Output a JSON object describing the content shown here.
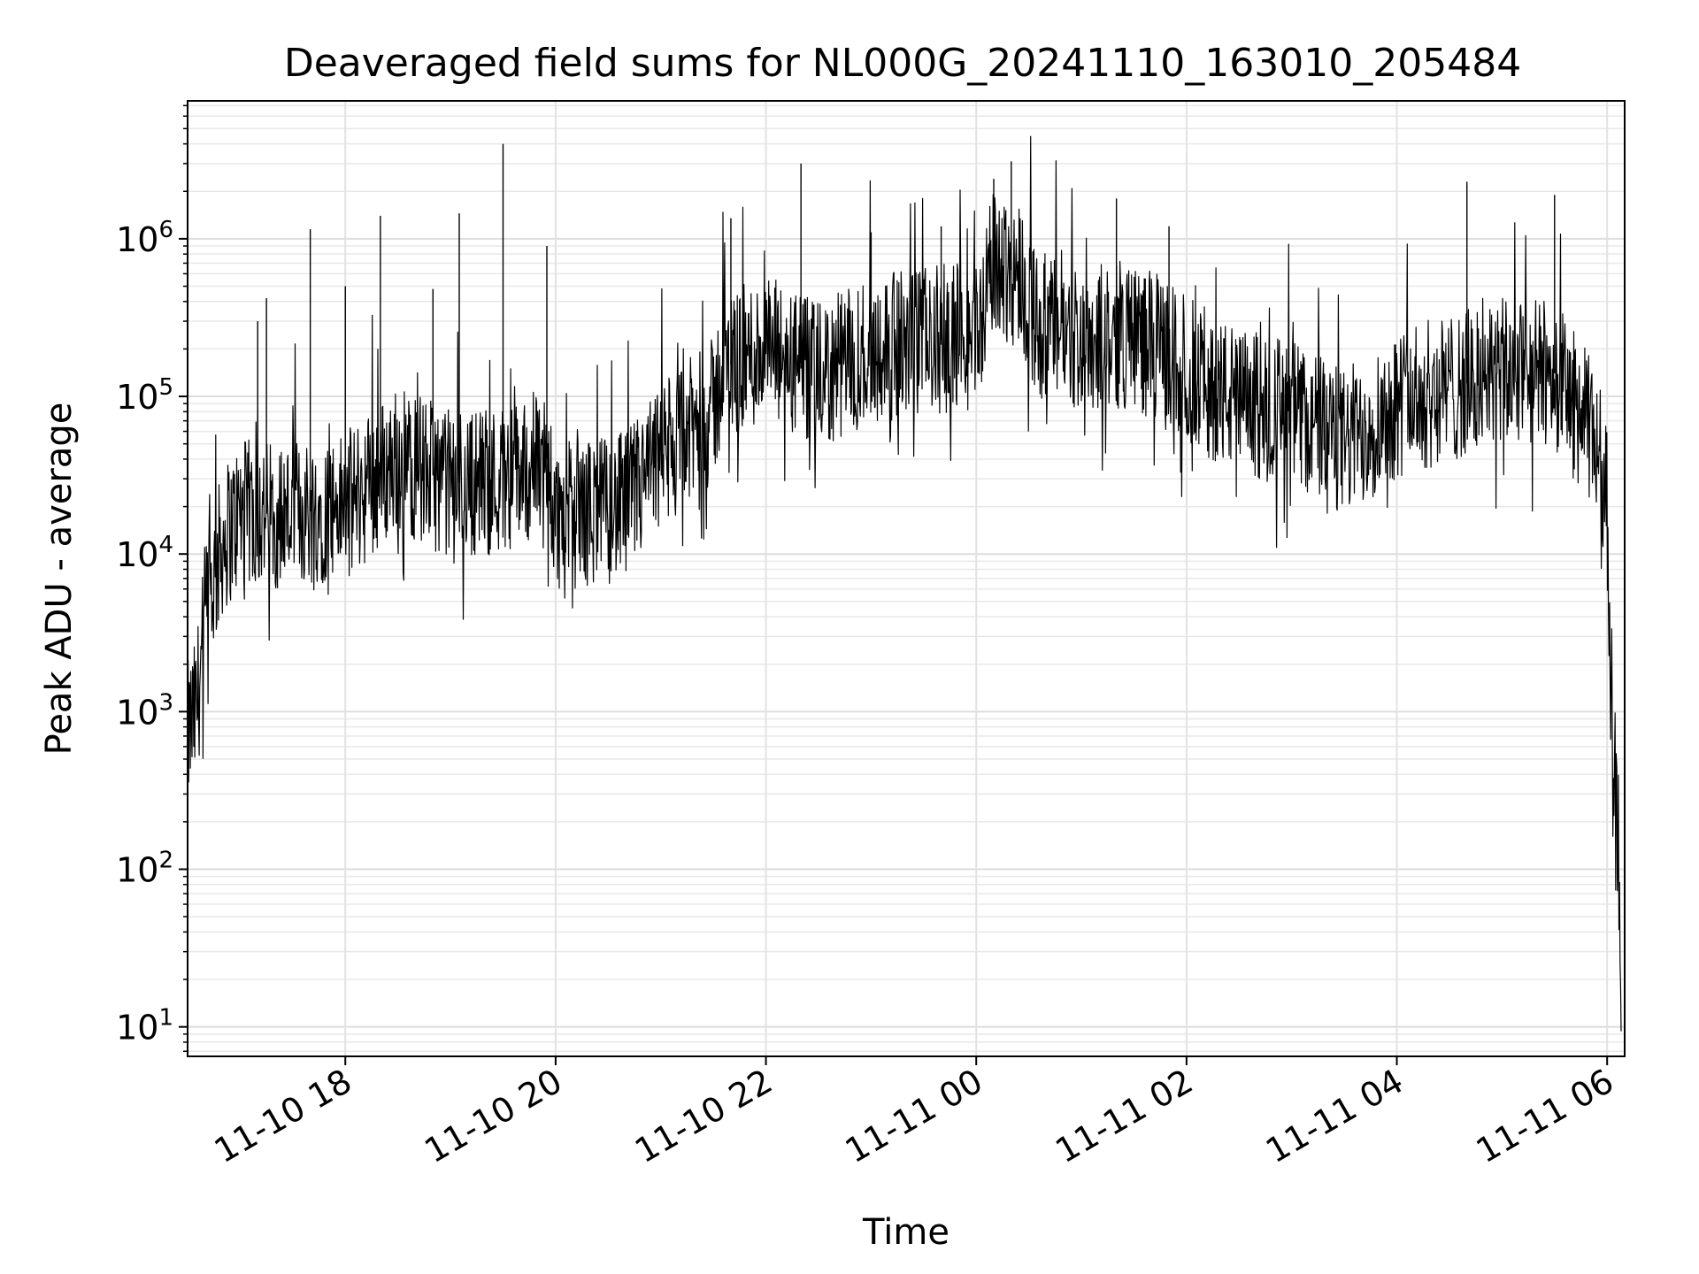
{
  "chart_data": {
    "type": "line",
    "title": "Deaveraged field sums for NL000G_20241110_163010_205484",
    "xlabel": "Time",
    "ylabel": "Peak ADU - average",
    "yscale": "log",
    "ylim": [
      6.5,
      7500000
    ],
    "xlim": [
      "2024-11-10 16:30",
      "2024-11-11 06:10"
    ],
    "grid": true,
    "x_ticks": [
      {
        "t": "2024-11-10 18:00",
        "label": "11-10 18"
      },
      {
        "t": "2024-11-10 20:00",
        "label": "11-10 20"
      },
      {
        "t": "2024-11-10 22:00",
        "label": "11-10 22"
      },
      {
        "t": "2024-11-11 00:00",
        "label": "11-11 00"
      },
      {
        "t": "2024-11-11 02:00",
        "label": "11-11 02"
      },
      {
        "t": "2024-11-11 04:00",
        "label": "11-11 04"
      },
      {
        "t": "2024-11-11 06:00",
        "label": "11-11 06"
      }
    ],
    "y_ticks": [
      {
        "value": 10,
        "base": "10",
        "exp": "1"
      },
      {
        "value": 100,
        "base": "10",
        "exp": "2"
      },
      {
        "value": 1000,
        "base": "10",
        "exp": "3"
      },
      {
        "value": 10000,
        "base": "10",
        "exp": "4"
      },
      {
        "value": 100000,
        "base": "10",
        "exp": "5"
      },
      {
        "value": 1000000,
        "base": "10",
        "exp": "6"
      }
    ],
    "series": [
      {
        "color": "#000000",
        "envelope": [
          {
            "t": "2024-11-10 16:30",
            "base": 700
          },
          {
            "t": "2024-11-10 16:35",
            "base": 1000
          },
          {
            "t": "2024-11-10 16:40",
            "base": 4000
          },
          {
            "t": "2024-11-10 16:50",
            "base": 12000
          },
          {
            "t": "2024-11-10 17:00",
            "base": 18000
          },
          {
            "t": "2024-11-10 17:30",
            "base": 18000
          },
          {
            "t": "2024-11-10 18:00",
            "base": 20000
          },
          {
            "t": "2024-11-10 18:30",
            "base": 40000
          },
          {
            "t": "2024-11-10 19:00",
            "base": 28000
          },
          {
            "t": "2024-11-10 19:30",
            "base": 30000
          },
          {
            "t": "2024-11-10 19:55",
            "base": 40000
          },
          {
            "t": "2024-11-10 20:00",
            "base": 17000
          },
          {
            "t": "2024-11-10 20:40",
            "base": 20000
          },
          {
            "t": "2024-11-10 21:00",
            "base": 40000
          },
          {
            "t": "2024-11-10 21:30",
            "base": 80000
          },
          {
            "t": "2024-11-10 21:35",
            "base": 150000
          },
          {
            "t": "2024-11-10 22:00",
            "base": 200000
          },
          {
            "t": "2024-11-10 22:30",
            "base": 130000
          },
          {
            "t": "2024-11-10 23:00",
            "base": 200000
          },
          {
            "t": "2024-11-10 23:30",
            "base": 220000
          },
          {
            "t": "2024-11-11 00:00",
            "base": 250000
          },
          {
            "t": "2024-11-11 00:10",
            "base": 700000
          },
          {
            "t": "2024-11-11 00:25",
            "base": 600000
          },
          {
            "t": "2024-11-11 00:35",
            "base": 280000
          },
          {
            "t": "2024-11-11 01:00",
            "base": 230000
          },
          {
            "t": "2024-11-11 01:30",
            "base": 250000
          },
          {
            "t": "2024-11-11 02:00",
            "base": 150000
          },
          {
            "t": "2024-11-11 02:30",
            "base": 90000
          },
          {
            "t": "2024-11-11 03:00",
            "base": 80000
          },
          {
            "t": "2024-11-11 03:30",
            "base": 50000
          },
          {
            "t": "2024-11-11 04:00",
            "base": 90000
          },
          {
            "t": "2024-11-11 05:00",
            "base": 140000
          },
          {
            "t": "2024-11-11 05:30",
            "base": 140000
          },
          {
            "t": "2024-11-11 05:55",
            "base": 50000
          },
          {
            "t": "2024-11-11 06:00",
            "base": 20000
          },
          {
            "t": "2024-11-11 06:02",
            "base": 2000
          },
          {
            "t": "2024-11-11 06:05",
            "base": 300
          },
          {
            "t": "2024-11-11 06:08",
            "base": 10
          }
        ],
        "spikes": [
          {
            "t": "2024-11-10 17:10",
            "value": 300000
          },
          {
            "t": "2024-11-10 17:15",
            "value": 420000
          },
          {
            "t": "2024-11-10 17:40",
            "value": 1150000
          },
          {
            "t": "2024-11-10 18:00",
            "value": 500000
          },
          {
            "t": "2024-11-10 18:20",
            "value": 1400000
          },
          {
            "t": "2024-11-10 18:50",
            "value": 480000
          },
          {
            "t": "2024-11-10 19:05",
            "value": 1450000
          },
          {
            "t": "2024-11-10 19:30",
            "value": 4000000
          },
          {
            "t": "2024-11-10 19:55",
            "value": 900000
          },
          {
            "t": "2024-11-10 21:40",
            "value": 1350000
          },
          {
            "t": "2024-11-10 22:20",
            "value": 3000000
          },
          {
            "t": "2024-11-10 23:00",
            "value": 1100000
          },
          {
            "t": "2024-11-10 23:40",
            "value": 1200000
          },
          {
            "t": "2024-11-11 00:10",
            "value": 2400000
          },
          {
            "t": "2024-11-11 00:20",
            "value": 3100000
          },
          {
            "t": "2024-11-11 01:20",
            "value": 1800000
          },
          {
            "t": "2024-11-11 01:50",
            "value": 1200000
          },
          {
            "t": "2024-11-11 04:40",
            "value": 2300000
          },
          {
            "t": "2024-11-11 05:30",
            "value": 1900000
          }
        ]
      }
    ]
  }
}
